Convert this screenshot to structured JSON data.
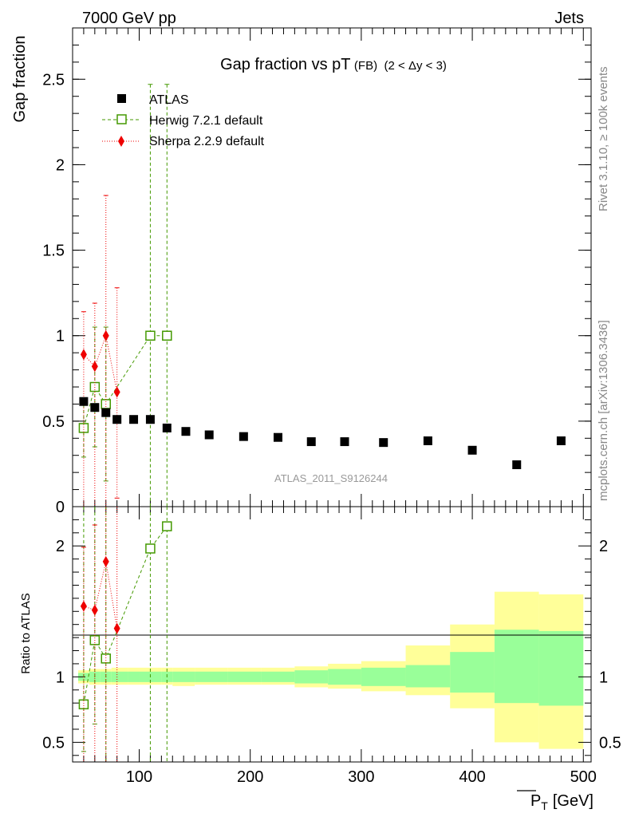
{
  "chart_data": [
    {
      "type": "scatter",
      "panel": "main",
      "header_left": "7000 GeV pp",
      "header_right": "Jets",
      "title_main": "Gap fraction vs pT",
      "title_sub": "(FB)",
      "title_range": "(2 < Δy < 3)",
      "ylabel": "Gap fraction",
      "ylim": [
        0,
        2.8
      ],
      "xlim": [
        40,
        507
      ],
      "yticks": [
        {
          "v": 0,
          "label": "0"
        },
        {
          "v": 0.5,
          "label": "0.5"
        },
        {
          "v": 1,
          "label": "1"
        },
        {
          "v": 1.5,
          "label": "1.5"
        },
        {
          "v": 2,
          "label": "2"
        },
        {
          "v": 2.5,
          "label": "2.5"
        }
      ],
      "analysis_tag": "ATLAS_2011_S9126244",
      "legend_position": "top-left",
      "series": [
        {
          "name": "ATLAS",
          "color": "#000000",
          "marker": "square-filled",
          "x": [
            50,
            60,
            70,
            80,
            95,
            110,
            125,
            142,
            163,
            194,
            225,
            255,
            285,
            320,
            360,
            400,
            440,
            480
          ],
          "y": [
            0.615,
            0.58,
            0.55,
            0.51,
            0.51,
            0.51,
            0.46,
            0.44,
            0.42,
            0.41,
            0.405,
            0.38,
            0.38,
            0.375,
            0.385,
            0.33,
            0.245,
            0.385
          ]
        },
        {
          "name": "Herwig 7.2.1 default",
          "color": "#449900",
          "marker": "square-open",
          "line": "dashed",
          "x": [
            50,
            60,
            70,
            110,
            125
          ],
          "y": [
            0.46,
            0.7,
            0.6,
            1.0,
            1.0
          ],
          "err_lo": [
            0.17,
            0.35,
            0.45,
            1.0,
            1.0
          ],
          "err_hi": [
            0.17,
            0.35,
            0.45,
            1.47,
            1.47
          ]
        },
        {
          "name": "Sherpa 2.2.9 default",
          "color": "#ee0000",
          "marker": "diamond-filled",
          "line": "dotted",
          "x": [
            50,
            60,
            70,
            80
          ],
          "y": [
            0.89,
            0.82,
            1.0,
            0.67
          ],
          "err_lo": [
            0.89,
            0.82,
            1.0,
            0.62
          ],
          "err_hi": [
            0.25,
            0.37,
            0.82,
            0.61
          ]
        }
      ]
    },
    {
      "type": "area",
      "panel": "ratio",
      "ylabel": "Ratio to ATLAS",
      "xlabel": "P_T [GeV]",
      "xlabel_main": "P",
      "xlabel_sub": "T",
      "xlabel_unit": "[GeV]",
      "ylim": [
        0.35,
        2.3
      ],
      "xlim": [
        40,
        507
      ],
      "xticks": [
        {
          "v": 100,
          "label": "100"
        },
        {
          "v": 200,
          "label": "200"
        },
        {
          "v": 300,
          "label": "300"
        },
        {
          "v": 400,
          "label": "400"
        },
        {
          "v": 500,
          "label": "500"
        }
      ],
      "yticks": [
        {
          "v": 0.5,
          "label": "0.5"
        },
        {
          "v": 1,
          "label": "1"
        },
        {
          "v": 2,
          "label": "2"
        }
      ],
      "bands": {
        "bins": [
          [
            45,
            55
          ],
          [
            55,
            65
          ],
          [
            65,
            75
          ],
          [
            75,
            90
          ],
          [
            90,
            100
          ],
          [
            100,
            120
          ],
          [
            120,
            130
          ],
          [
            130,
            150
          ],
          [
            150,
            180
          ],
          [
            180,
            210
          ],
          [
            210,
            240
          ],
          [
            240,
            270
          ],
          [
            270,
            300
          ],
          [
            300,
            340
          ],
          [
            340,
            380
          ],
          [
            380,
            420
          ],
          [
            420,
            460
          ],
          [
            460,
            500
          ]
        ],
        "stat_lo": [
          0.97,
          0.96,
          0.96,
          0.96,
          0.96,
          0.96,
          0.96,
          0.96,
          0.96,
          0.96,
          0.96,
          0.95,
          0.94,
          0.93,
          0.92,
          0.88,
          0.8,
          0.78
        ],
        "stat_hi": [
          1.03,
          1.04,
          1.04,
          1.04,
          1.04,
          1.04,
          1.04,
          1.04,
          1.04,
          1.04,
          1.04,
          1.05,
          1.06,
          1.07,
          1.09,
          1.19,
          1.36,
          1.35
        ],
        "tot_lo": [
          0.95,
          0.94,
          0.94,
          0.94,
          0.94,
          0.94,
          0.94,
          0.93,
          0.94,
          0.94,
          0.94,
          0.92,
          0.91,
          0.89,
          0.86,
          0.76,
          0.5,
          0.45
        ],
        "tot_hi": [
          1.05,
          1.06,
          1.06,
          1.07,
          1.07,
          1.07,
          1.07,
          1.07,
          1.07,
          1.07,
          1.07,
          1.08,
          1.1,
          1.12,
          1.24,
          1.4,
          1.65,
          1.63
        ],
        "stat_color": "#99ff99",
        "tot_color": "#ffff99"
      },
      "series": [
        {
          "name": "Herwig 7.2.1 default",
          "color": "#449900",
          "marker": "square-open",
          "line": "dashed",
          "x": [
            50,
            60,
            70,
            110,
            125
          ],
          "y": [
            0.79,
            1.28,
            1.14,
            1.98,
            2.15
          ],
          "err_lo": [
            0.36,
            0.64,
            0.89,
            2.0,
            2.0
          ],
          "err_hi": [
            2.0,
            2.0,
            2.0,
            2.0,
            2.0
          ]
        },
        {
          "name": "Sherpa 2.2.9 default",
          "color": "#ee0000",
          "marker": "diamond-filled",
          "line": "dotted",
          "x": [
            50,
            60,
            70,
            80
          ],
          "y": [
            1.54,
            1.51,
            1.88,
            1.37
          ],
          "err_lo": [
            1.54,
            1.51,
            1.88,
            1.37
          ],
          "err_hi": [
            0.45,
            0.65,
            2.0,
            2.0
          ]
        }
      ]
    }
  ],
  "side_labels": {
    "rivet": "Rivet 3.1.10, ≥ 100k events",
    "mcplots": "mcplots.cern.ch [arXiv:1306.3436]"
  }
}
